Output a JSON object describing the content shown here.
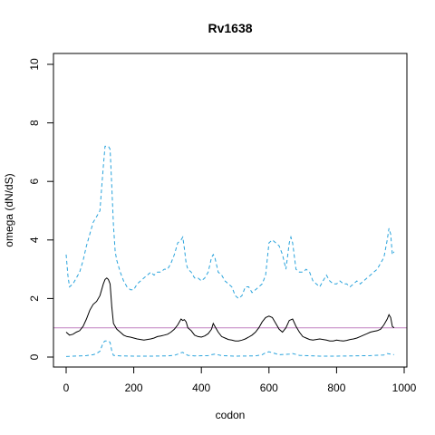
{
  "chart_data": {
    "type": "line",
    "title": "Rv1638",
    "xlabel": "codon",
    "ylabel": "omega (dN/dS)",
    "xlim": [
      0,
      1000
    ],
    "ylim": [
      0,
      10
    ],
    "xticks": [
      0,
      200,
      400,
      600,
      800,
      1000
    ],
    "yticks": [
      0,
      2,
      4,
      6,
      8,
      10
    ],
    "grid": false,
    "legend": "none",
    "reference_line": {
      "y": 1,
      "color": "#c080c0"
    },
    "series": [
      {
        "role": "upper-interval",
        "style": "dashed",
        "color": "#29a3dc",
        "x": [
          0,
          5,
          10,
          20,
          30,
          40,
          50,
          60,
          70,
          80,
          90,
          100,
          105,
          110,
          115,
          120,
          125,
          130,
          135,
          140,
          145,
          150,
          160,
          170,
          180,
          190,
          200,
          210,
          220,
          230,
          240,
          250,
          260,
          270,
          280,
          290,
          300,
          310,
          320,
          330,
          340,
          345,
          350,
          355,
          360,
          370,
          380,
          390,
          400,
          410,
          420,
          430,
          435,
          440,
          450,
          460,
          470,
          480,
          490,
          500,
          510,
          520,
          530,
          540,
          550,
          560,
          570,
          580,
          590,
          600,
          610,
          620,
          630,
          640,
          650,
          660,
          665,
          670,
          680,
          690,
          700,
          710,
          720,
          730,
          740,
          750,
          760,
          770,
          780,
          790,
          800,
          810,
          820,
          830,
          840,
          850,
          860,
          870,
          880,
          890,
          900,
          910,
          920,
          930,
          940,
          950,
          955,
          960,
          965,
          970
        ],
        "y": [
          3.5,
          2.8,
          2.4,
          2.5,
          2.7,
          2.9,
          3.3,
          3.8,
          4.2,
          4.6,
          4.8,
          5.0,
          5.8,
          6.5,
          7.2,
          7.2,
          7.2,
          7.1,
          5.8,
          4.5,
          3.6,
          3.3,
          2.9,
          2.6,
          2.4,
          2.3,
          2.3,
          2.5,
          2.6,
          2.7,
          2.8,
          2.9,
          2.8,
          2.9,
          2.9,
          3.0,
          3.0,
          3.2,
          3.5,
          3.9,
          4.0,
          4.1,
          3.7,
          3.2,
          3.0,
          2.9,
          2.7,
          2.7,
          2.6,
          2.7,
          2.9,
          3.4,
          3.5,
          3.4,
          2.9,
          2.8,
          2.6,
          2.5,
          2.4,
          2.1,
          2.0,
          2.1,
          2.4,
          2.4,
          2.2,
          2.3,
          2.4,
          2.5,
          2.8,
          3.9,
          4.0,
          3.9,
          3.8,
          3.5,
          3.0,
          3.9,
          4.1,
          3.9,
          3.0,
          2.9,
          2.9,
          3.0,
          2.9,
          2.6,
          2.5,
          2.4,
          2.6,
          2.8,
          2.6,
          2.5,
          2.5,
          2.6,
          2.5,
          2.5,
          2.4,
          2.5,
          2.6,
          2.5,
          2.6,
          2.7,
          2.8,
          2.9,
          3.0,
          3.2,
          3.4,
          4.0,
          4.4,
          4.2,
          3.5,
          3.6
        ]
      },
      {
        "role": "estimate",
        "style": "solid",
        "color": "#000000",
        "x": [
          0,
          10,
          20,
          30,
          40,
          50,
          60,
          70,
          80,
          90,
          100,
          110,
          115,
          120,
          125,
          130,
          135,
          140,
          150,
          160,
          170,
          180,
          190,
          200,
          210,
          220,
          230,
          240,
          250,
          260,
          270,
          280,
          290,
          300,
          310,
          320,
          330,
          340,
          345,
          350,
          355,
          360,
          370,
          380,
          390,
          400,
          410,
          420,
          430,
          435,
          440,
          450,
          460,
          470,
          480,
          490,
          500,
          510,
          520,
          530,
          540,
          550,
          560,
          570,
          580,
          590,
          600,
          610,
          620,
          630,
          640,
          650,
          660,
          670,
          680,
          690,
          700,
          710,
          720,
          730,
          740,
          750,
          760,
          770,
          780,
          790,
          800,
          810,
          820,
          830,
          840,
          850,
          860,
          870,
          880,
          890,
          900,
          910,
          920,
          930,
          940,
          950,
          955,
          960,
          965,
          970
        ],
        "y": [
          0.85,
          0.75,
          0.78,
          0.85,
          0.9,
          1.05,
          1.3,
          1.6,
          1.8,
          1.9,
          2.1,
          2.5,
          2.65,
          2.7,
          2.65,
          2.5,
          1.7,
          1.15,
          0.95,
          0.85,
          0.75,
          0.7,
          0.68,
          0.65,
          0.62,
          0.6,
          0.58,
          0.6,
          0.62,
          0.65,
          0.7,
          0.72,
          0.75,
          0.78,
          0.85,
          0.95,
          1.1,
          1.3,
          1.25,
          1.28,
          1.2,
          1.0,
          0.9,
          0.75,
          0.7,
          0.68,
          0.72,
          0.8,
          0.95,
          1.15,
          1.05,
          0.85,
          0.7,
          0.65,
          0.6,
          0.58,
          0.55,
          0.55,
          0.58,
          0.62,
          0.68,
          0.75,
          0.85,
          1.0,
          1.2,
          1.35,
          1.4,
          1.35,
          1.15,
          0.95,
          0.85,
          1.0,
          1.25,
          1.3,
          1.05,
          0.85,
          0.7,
          0.65,
          0.6,
          0.58,
          0.6,
          0.62,
          0.6,
          0.58,
          0.55,
          0.55,
          0.58,
          0.56,
          0.55,
          0.57,
          0.6,
          0.62,
          0.65,
          0.7,
          0.75,
          0.8,
          0.85,
          0.88,
          0.9,
          0.95,
          1.1,
          1.3,
          1.45,
          1.35,
          1.05,
          1.0
        ]
      },
      {
        "role": "lower-interval",
        "style": "dashed",
        "color": "#29a3dc",
        "x": [
          0,
          20,
          40,
          60,
          80,
          90,
          100,
          110,
          115,
          120,
          125,
          130,
          135,
          140,
          160,
          200,
          250,
          300,
          320,
          330,
          340,
          345,
          350,
          360,
          380,
          420,
          430,
          440,
          460,
          500,
          560,
          580,
          590,
          600,
          610,
          630,
          660,
          670,
          690,
          750,
          800,
          850,
          900,
          940,
          950,
          960,
          970
        ],
        "y": [
          0.02,
          0.03,
          0.04,
          0.05,
          0.08,
          0.12,
          0.2,
          0.5,
          0.55,
          0.55,
          0.55,
          0.5,
          0.2,
          0.06,
          0.04,
          0.03,
          0.03,
          0.04,
          0.06,
          0.1,
          0.15,
          0.16,
          0.12,
          0.06,
          0.04,
          0.05,
          0.08,
          0.1,
          0.05,
          0.03,
          0.04,
          0.08,
          0.15,
          0.18,
          0.15,
          0.08,
          0.1,
          0.12,
          0.06,
          0.03,
          0.03,
          0.04,
          0.05,
          0.07,
          0.12,
          0.1,
          0.08
        ]
      }
    ]
  }
}
